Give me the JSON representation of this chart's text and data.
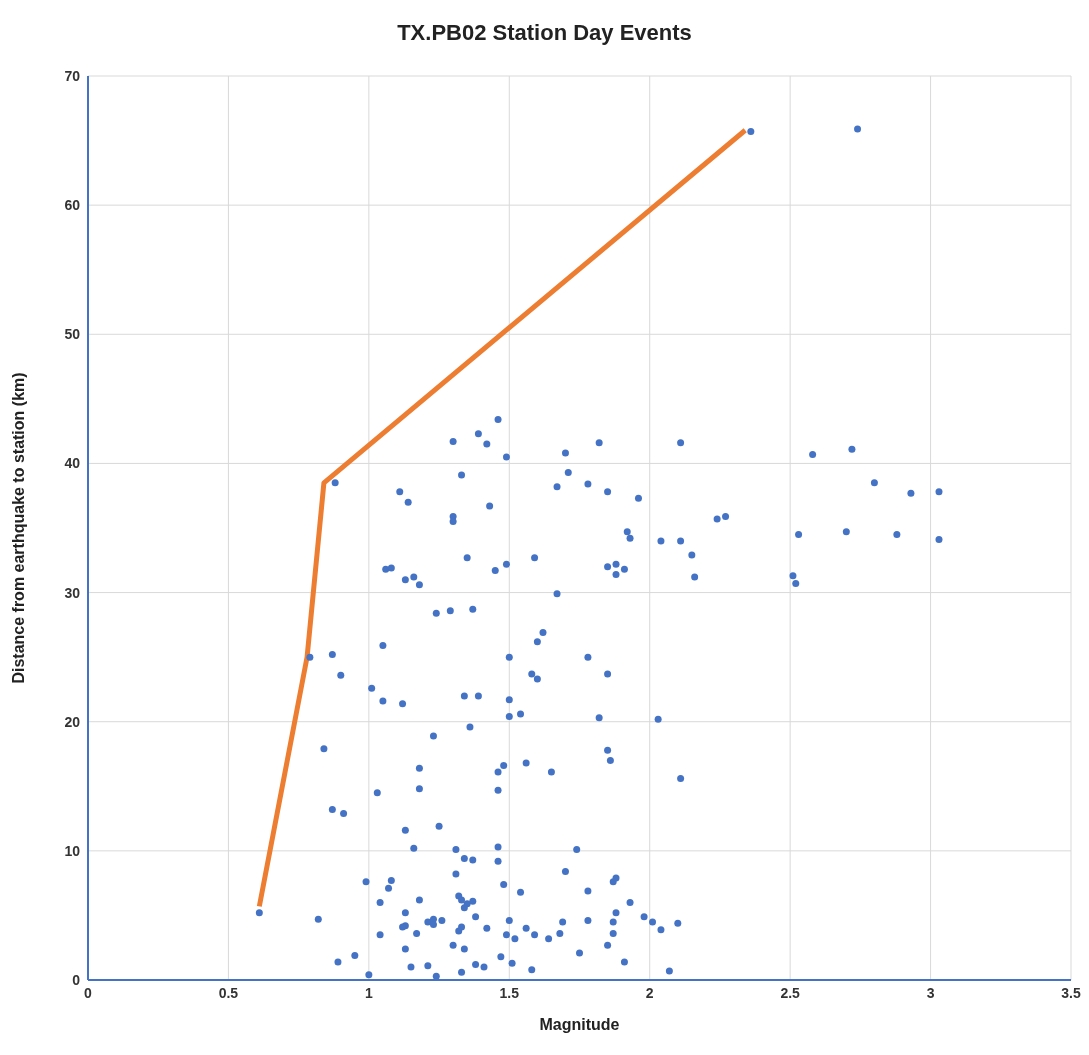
{
  "chart_data": {
    "type": "scatter",
    "title": "TX.PB02 Station Day Events",
    "xlabel": "Magnitude",
    "ylabel": "Distance from earthquake to station (km)",
    "xlim": [
      0,
      3.5
    ],
    "xticks": [
      0,
      0.5,
      1,
      1.5,
      2,
      2.5,
      3,
      3.5
    ],
    "ylim": [
      0,
      70
    ],
    "yticks": [
      0,
      10,
      20,
      30,
      40,
      50,
      60,
      70
    ],
    "grid": true,
    "series": [
      {
        "color": "#4472c4",
        "marker": "circle",
        "x": [
          2.36,
          2.74,
          1.46,
          1.39,
          1.3,
          1.42,
          1.49,
          1.33,
          1.7,
          1.71,
          1.82,
          2.11,
          2.72,
          2.58,
          2.8,
          0.88,
          1.11,
          1.14,
          1.43,
          1.3,
          1.3,
          1.67,
          1.78,
          1.85,
          1.96,
          1.92,
          1.93,
          2.04,
          2.11,
          2.24,
          2.27,
          2.53,
          2.7,
          2.88,
          2.93,
          3.03,
          3.03,
          2.15,
          2.16,
          2.51,
          2.52,
          1.35,
          1.49,
          1.59,
          1.45,
          1.06,
          1.08,
          1.13,
          1.16,
          1.18,
          1.85,
          1.88,
          1.88,
          1.91,
          1.24,
          1.29,
          1.37,
          1.67,
          1.05,
          0.79,
          0.87,
          0.9,
          1.62,
          1.6,
          1.5,
          1.78,
          1.58,
          1.6,
          1.85,
          1.01,
          1.05,
          1.12,
          1.34,
          1.39,
          1.5,
          1.5,
          1.54,
          1.36,
          1.82,
          2.03,
          1.23,
          0.84,
          1.85,
          1.86,
          1.56,
          1.48,
          1.46,
          1.65,
          1.18,
          1.18,
          1.46,
          1.03,
          2.11,
          0.87,
          0.91,
          1.25,
          1.13,
          1.16,
          1.31,
          1.46,
          1.46,
          1.34,
          1.37,
          1.74,
          1.7,
          1.31,
          0.99,
          1.08,
          1.07,
          1.48,
          1.87,
          1.88,
          1.78,
          1.54,
          1.32,
          1.33,
          1.35,
          1.34,
          1.37,
          1.18,
          1.04,
          0.61,
          0.82,
          1.13,
          1.13,
          1.12,
          1.21,
          1.23,
          1.26,
          1.23,
          1.38,
          1.42,
          1.33,
          1.32,
          1.04,
          1.17,
          1.5,
          1.56,
          1.59,
          1.49,
          1.52,
          1.69,
          1.78,
          1.87,
          1.88,
          1.87,
          1.93,
          1.98,
          2.01,
          2.04,
          2.1,
          1.3,
          1.34,
          1.13,
          1.85,
          1.75,
          1.21,
          1.47,
          1.68,
          0.95,
          0.89,
          1.15,
          1.38,
          1.41,
          1.51,
          1.58,
          1.91,
          2.07,
          1.0,
          1.24,
          1.33,
          1.64
        ],
        "values": [
          65.7,
          65.9,
          43.4,
          42.3,
          41.7,
          41.5,
          40.5,
          39.1,
          40.8,
          39.3,
          41.6,
          41.6,
          41.1,
          40.7,
          38.5,
          38.5,
          37.8,
          37.0,
          36.7,
          35.9,
          35.5,
          38.2,
          38.4,
          37.8,
          37.3,
          34.7,
          34.2,
          34.0,
          34.0,
          35.7,
          35.9,
          34.5,
          34.7,
          34.5,
          37.7,
          37.8,
          34.1,
          32.9,
          31.2,
          31.3,
          30.7,
          32.7,
          32.2,
          32.7,
          31.7,
          31.8,
          31.9,
          31.0,
          31.2,
          30.6,
          32.0,
          32.2,
          31.4,
          31.8,
          28.4,
          28.6,
          28.7,
          29.9,
          25.9,
          25.0,
          25.2,
          23.6,
          26.9,
          26.2,
          25.0,
          25.0,
          23.7,
          23.3,
          23.7,
          22.6,
          21.6,
          21.4,
          22.0,
          22.0,
          21.7,
          20.4,
          20.6,
          19.6,
          20.3,
          20.2,
          18.9,
          17.9,
          17.8,
          17.0,
          16.8,
          16.6,
          16.1,
          16.1,
          16.4,
          14.8,
          14.7,
          14.5,
          15.6,
          13.2,
          12.9,
          11.9,
          11.6,
          10.2,
          10.1,
          10.3,
          9.2,
          9.4,
          9.3,
          10.1,
          8.4,
          8.2,
          7.6,
          7.7,
          7.1,
          7.4,
          7.6,
          7.9,
          6.9,
          6.8,
          6.5,
          6.2,
          5.9,
          5.6,
          6.1,
          6.2,
          6.0,
          5.2,
          4.7,
          5.2,
          4.2,
          4.1,
          4.5,
          4.7,
          4.6,
          4.3,
          4.9,
          4.0,
          4.1,
          3.8,
          3.5,
          3.6,
          4.6,
          4.0,
          3.5,
          3.5,
          3.2,
          4.5,
          4.6,
          4.5,
          5.2,
          3.6,
          6.0,
          4.9,
          4.5,
          3.9,
          4.4,
          2.7,
          2.4,
          2.4,
          2.7,
          2.1,
          1.1,
          1.8,
          3.6,
          1.9,
          1.4,
          1.0,
          1.2,
          1.0,
          1.3,
          0.8,
          1.4,
          0.7,
          0.4,
          0.3,
          0.6,
          3.2
        ]
      },
      {
        "type": "line",
        "color": "#ed7d31",
        "marker": "none",
        "line_style": "solid",
        "x": [
          0.61,
          0.78,
          0.84,
          2.34
        ],
        "values": [
          5.7,
          25,
          38.5,
          65.8
        ]
      }
    ]
  }
}
